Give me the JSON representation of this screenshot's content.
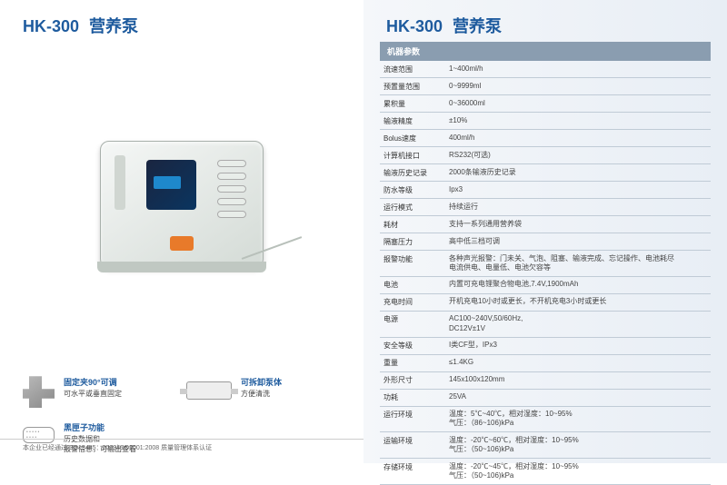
{
  "title": {
    "model": "HK-300",
    "name": "营养泵"
  },
  "features": [
    {
      "icon": "clamp",
      "title": "固定夹90°可调",
      "desc": "可水平或垂直固定"
    },
    {
      "icon": "body",
      "title": "可拆卸泵体",
      "desc": "方便清洗"
    },
    {
      "icon": "port",
      "title": "黑匣子功能",
      "desc": "历史数据和\n报警信息，可输出查看"
    }
  ],
  "footer": "本企业已经通过ISO13485：2003/ISO9001:2008\n质量管理体系认证",
  "spec_header": "机器参数",
  "specs": [
    {
      "k": "流速范围",
      "v": "1~400ml/h"
    },
    {
      "k": "预置量范围",
      "v": "0~9999ml"
    },
    {
      "k": "累积量",
      "v": "0~36000ml"
    },
    {
      "k": "输液精度",
      "v": "±10%"
    },
    {
      "k": "Bolus速度",
      "v": "400ml/h"
    },
    {
      "k": "计算机接口",
      "v": "RS232(可选)"
    },
    {
      "k": "输液历史记录",
      "v": "2000条输液历史记录"
    },
    {
      "k": "防水等级",
      "v": "Ipx3"
    },
    {
      "k": "运行模式",
      "v": "持续运行"
    },
    {
      "k": "耗材",
      "v": "支持一系列通用营养袋"
    },
    {
      "k": "隔塞压力",
      "v": "高中低三档可调"
    },
    {
      "k": "报警功能",
      "v": "各种声光报警：门未关、气泡、阻塞、输液完成、忘记操作、电池耗尽\n电流供电、电量低、电池欠容等"
    },
    {
      "k": "电池",
      "v": "内置可充电锂聚合物电池,7.4V,1900mAh"
    },
    {
      "k": "充电时间",
      "v": "开机充电10小时或更长，不开机充电3小时或更长"
    },
    {
      "k": "电源",
      "v": "AC100~240V,50/60Hz,\nDC12V±1V"
    },
    {
      "k": "安全等级",
      "v": "I类CF型，IPx3"
    },
    {
      "k": "重量",
      "v": "≤1.4KG"
    },
    {
      "k": "外形尺寸",
      "v": "145x100x120mm"
    },
    {
      "k": "功耗",
      "v": "25VA"
    },
    {
      "k": "运行环境",
      "v": "温度：5℃~40℃，相对湿度：10~95%\n气压：（86~106)kPa"
    },
    {
      "k": "运输环境",
      "v": "温度：-20℃~60℃，相对湿度：10~95%\n气压：（50~106)kPa"
    },
    {
      "k": "存储环境",
      "v": "温度：-20℃~45℃，相对湿度：10~95%\n气压：（50~106)kPa"
    }
  ]
}
